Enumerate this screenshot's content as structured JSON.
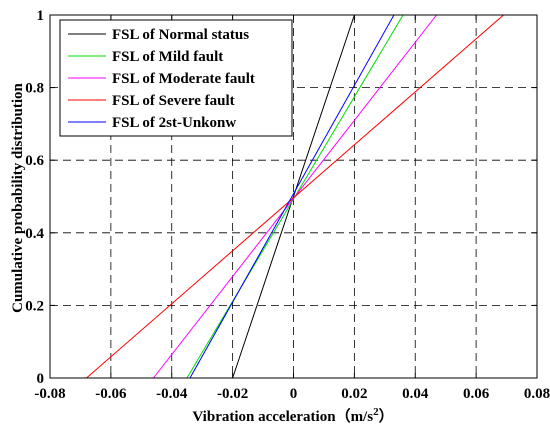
{
  "chart_data": {
    "type": "line",
    "title": "",
    "xlabel": "Vibration acceleration（m/s",
    "xlabel_sup": "2",
    "xlabel_close": "）",
    "ylabel": "Cumulative probability distribution",
    "xlim": [
      -0.08,
      0.08
    ],
    "ylim": [
      0,
      1
    ],
    "xticks": [
      -0.08,
      -0.06,
      -0.04,
      -0.02,
      0,
      0.02,
      0.04,
      0.06,
      0.08
    ],
    "xtick_labels": [
      "-0.08",
      "-0.06",
      "-0.04",
      "-0.02",
      "0",
      "0.02",
      "0.04",
      "0.06",
      "0.08"
    ],
    "yticks": [
      0,
      0.2,
      0.4,
      0.6,
      0.8,
      1
    ],
    "ytick_labels": [
      "0",
      "0.2",
      "0.4",
      "0.6",
      "0.8",
      "1"
    ],
    "grid": true,
    "legend_position": "top-left",
    "series": [
      {
        "name": "FSL of Normal status",
        "color": "#000000",
        "x": [
          -0.02,
          0.02
        ],
        "y": [
          0,
          1
        ]
      },
      {
        "name": "FSL of Mild fault",
        "color": "#00dd00",
        "x": [
          -0.035,
          0.036
        ],
        "y": [
          0,
          1
        ]
      },
      {
        "name": "FSL of Moderate fault",
        "color": "#ff00ff",
        "x": [
          -0.046,
          0.047
        ],
        "y": [
          0,
          1
        ]
      },
      {
        "name": "FSL of Severe fault",
        "color": "#ff0000",
        "x": [
          -0.068,
          0.069
        ],
        "y": [
          0,
          1
        ]
      },
      {
        "name": "FSL of 2st-Unkonw",
        "color": "#0000ff",
        "x": [
          -0.034,
          0.033
        ],
        "y": [
          0,
          1
        ]
      }
    ]
  }
}
